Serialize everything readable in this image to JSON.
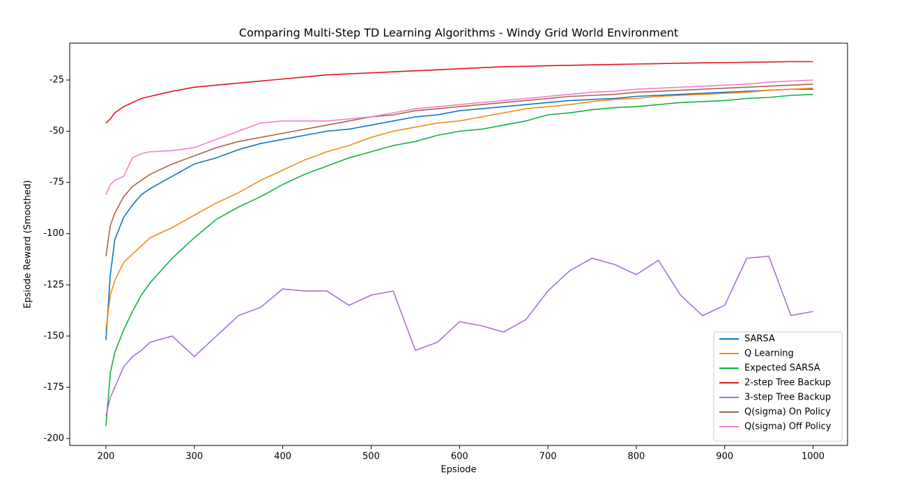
{
  "chart_data": {
    "type": "line",
    "title": "Comparing Multi-Step TD Learning Algorithms - Windy Grid World Environment",
    "xlabel": "Epsiode",
    "ylabel": "Epsiode Reward (Smoothed)",
    "x": [
      200,
      205,
      210,
      220,
      230,
      240,
      250,
      275,
      300,
      325,
      350,
      375,
      400,
      425,
      450,
      475,
      500,
      525,
      550,
      575,
      600,
      625,
      650,
      675,
      700,
      725,
      750,
      775,
      800,
      825,
      850,
      875,
      900,
      925,
      950,
      975,
      1000
    ],
    "xlim": [
      159,
      1039
    ],
    "xticks": [
      200,
      300,
      400,
      500,
      600,
      700,
      800,
      900,
      1000
    ],
    "ylim": [
      -203.4,
      -7
    ],
    "yticks": [
      -200,
      -175,
      -150,
      -125,
      -100,
      -75,
      -50,
      -25
    ],
    "legend": "lower right",
    "series": [
      {
        "name": "SARSA",
        "color": "#0b77bd",
        "values": [
          -152,
          -120,
          -103,
          -92,
          -86,
          -81,
          -78,
          -72,
          -66,
          -63,
          -59,
          -56,
          -54,
          -52,
          -50,
          -49,
          -47,
          -45,
          -43,
          -42,
          -40,
          -39,
          -38,
          -37,
          -36,
          -35,
          -34.5,
          -34,
          -33,
          -32.5,
          -32,
          -31.5,
          -31,
          -30.5,
          -30,
          -29.5,
          -29.5
        ]
      },
      {
        "name": "Q Learning",
        "color": "#f58b0f",
        "values": [
          -147,
          -130,
          -123,
          -114,
          -110,
          -106,
          -102,
          -97,
          -91,
          -85,
          -80,
          -74,
          -69,
          -64,
          -60,
          -57,
          -53,
          -50,
          -48,
          -46,
          -45,
          -43,
          -41,
          -39,
          -38,
          -37,
          -35.5,
          -34.5,
          -34,
          -33,
          -32.5,
          -32,
          -31.5,
          -31,
          -30,
          -29.5,
          -29
        ]
      },
      {
        "name": "Expected SARSA",
        "color": "#0fb23c",
        "values": [
          -194,
          -168,
          -158,
          -147,
          -138,
          -130,
          -124,
          -112,
          -102,
          -93,
          -87,
          -82,
          -76,
          -71,
          -67,
          -63,
          -60,
          -57,
          -55,
          -52,
          -50,
          -49,
          -47,
          -45,
          -42,
          -41,
          -39.5,
          -38.5,
          -38,
          -37,
          -36,
          -35.5,
          -35,
          -34,
          -33.5,
          -32.5,
          -32
        ]
      },
      {
        "name": "2-step Tree Backup",
        "color": "#e0141c",
        "values": [
          -46,
          -44,
          -41,
          -38,
          -36,
          -34,
          -33,
          -30.5,
          -28.5,
          -27.5,
          -26.5,
          -25.5,
          -24.5,
          -23.5,
          -22.5,
          -22,
          -21.5,
          -21,
          -20.5,
          -20,
          -19.5,
          -19,
          -18.5,
          -18.3,
          -18,
          -17.8,
          -17.6,
          -17.4,
          -17.2,
          -17,
          -16.8,
          -16.6,
          -16.5,
          -16.3,
          -16.2,
          -16,
          -16
        ]
      },
      {
        "name": "3-step Tree Backup",
        "color": "#a96fd1",
        "values": [
          -189,
          -180,
          -175,
          -165,
          -160,
          -157,
          -153,
          -150,
          -160,
          -150,
          -140,
          -136,
          -127,
          -128,
          -128,
          -135,
          -130,
          -128,
          -157,
          -153,
          -143,
          -145,
          -148,
          -142,
          -128,
          -118,
          -112,
          -115,
          -120,
          -113,
          -130,
          -140,
          -135,
          -112,
          -111,
          -140,
          -138
        ]
      },
      {
        "name": "Q(sigma) On Policy",
        "color": "#a5634d",
        "values": [
          -111,
          -96,
          -90,
          -82,
          -77,
          -74,
          -71,
          -66,
          -62,
          -58,
          -55,
          -53,
          -51,
          -49,
          -47,
          -45,
          -43,
          -42,
          -40,
          -39,
          -38,
          -37,
          -36,
          -35,
          -34,
          -33,
          -32.5,
          -32,
          -31,
          -30.5,
          -30,
          -29.5,
          -29,
          -28.5,
          -28,
          -27.5,
          -27
        ]
      },
      {
        "name": "Q(sigma) Off Policy",
        "color": "#f27ccd",
        "values": [
          -81,
          -76,
          -74,
          -72,
          -63,
          -61,
          -60,
          -59.5,
          -58,
          -54,
          -50,
          -46,
          -45,
          -45,
          -45,
          -44,
          -43,
          -41,
          -39,
          -38,
          -37,
          -36,
          -35,
          -34,
          -33,
          -32,
          -31,
          -30.5,
          -29.5,
          -29,
          -28.5,
          -28,
          -27.5,
          -27,
          -26,
          -25.5,
          -25
        ]
      }
    ]
  }
}
